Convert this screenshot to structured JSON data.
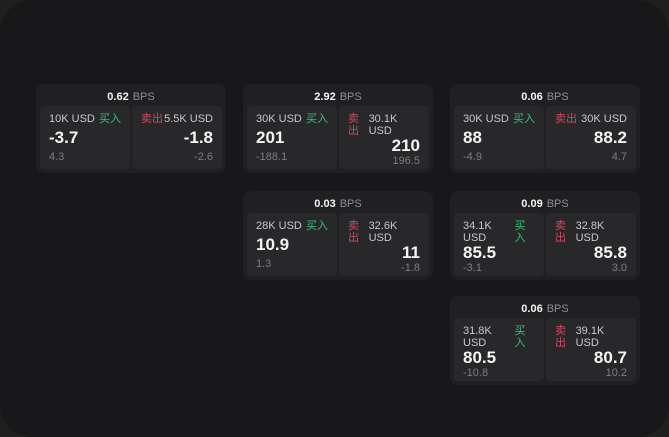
{
  "labels": {
    "bps": "BPS",
    "buy": "买入",
    "sell": "卖出"
  },
  "colors": {
    "buy_green": "#33c27a",
    "sell_red": "#d1495f",
    "window_bg": "#18181a",
    "card_bg": "#202023",
    "panel_bg": "#28282b"
  },
  "cards": [
    {
      "bps": "0.62",
      "buy": {
        "notional": "10K USD",
        "value": "-3.7",
        "delta": "4.3"
      },
      "sell": {
        "notional": "5.5K USD",
        "value": "-1.8",
        "delta": "-2.6"
      }
    },
    {
      "bps": "2.92",
      "buy": {
        "notional": "30K USD",
        "value": "201",
        "delta": "-188.1"
      },
      "sell": {
        "notional": "30.1K USD",
        "value": "210",
        "delta": "196.5"
      }
    },
    {
      "bps": "0.06",
      "buy": {
        "notional": "30K USD",
        "value": "88",
        "delta": "-4.9"
      },
      "sell": {
        "notional": "30K USD",
        "value": "88.2",
        "delta": "4.7"
      }
    },
    {
      "bps": "0.03",
      "buy": {
        "notional": "28K USD",
        "value": "10.9",
        "delta": "1.3"
      },
      "sell": {
        "notional": "32.6K USD",
        "value": "11",
        "delta": "-1.8"
      }
    },
    {
      "bps": "0.09",
      "buy": {
        "notional": "34.1K USD",
        "value": "85.5",
        "delta": "-3.1"
      },
      "sell": {
        "notional": "32.8K USD",
        "value": "85.8",
        "delta": "3.0"
      }
    },
    {
      "bps": "0.06",
      "buy": {
        "notional": "31.8K USD",
        "value": "80.5",
        "delta": "-10.8"
      },
      "sell": {
        "notional": "39.1K USD",
        "value": "80.7",
        "delta": "10.2"
      }
    }
  ]
}
